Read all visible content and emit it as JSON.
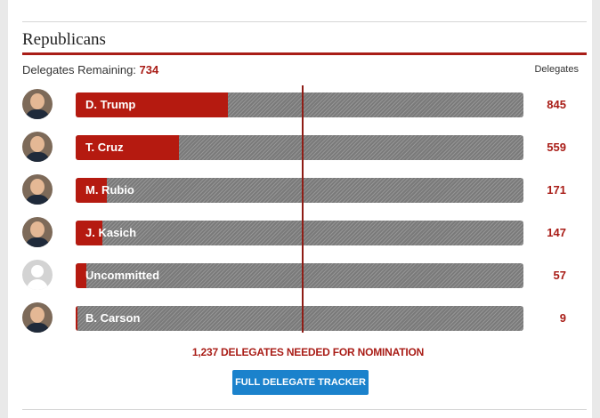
{
  "section": {
    "title": "Republicans",
    "remaining_label": "Delegates Remaining:",
    "remaining_value": "734",
    "column_header": "Delegates"
  },
  "candidates": [
    {
      "name": "D. Trump",
      "delegates": "845",
      "fill_fraction": 0.34,
      "avatar": "trump-photo"
    },
    {
      "name": "T. Cruz",
      "delegates": "559",
      "fill_fraction": 0.23,
      "avatar": "cruz-photo"
    },
    {
      "name": "M. Rubio",
      "delegates": "171",
      "fill_fraction": 0.07,
      "avatar": "rubio-photo"
    },
    {
      "name": "J. Kasich",
      "delegates": "147",
      "fill_fraction": 0.06,
      "avatar": "kasich-photo"
    },
    {
      "name": "Uncommitted",
      "delegates": "57",
      "fill_fraction": 0.023,
      "avatar": "generic-person"
    },
    {
      "name": "B. Carson",
      "delegates": "9",
      "fill_fraction": 0.004,
      "avatar": "carson-photo"
    }
  ],
  "threshold_text": "1,237 DELEGATES NEEDED FOR NOMINATION",
  "button_label": "FULL DELEGATE TRACKER",
  "colors": {
    "accent_red": "#a91d17",
    "bar_fill": "#b51a10",
    "button_blue": "#1b82cc"
  }
}
